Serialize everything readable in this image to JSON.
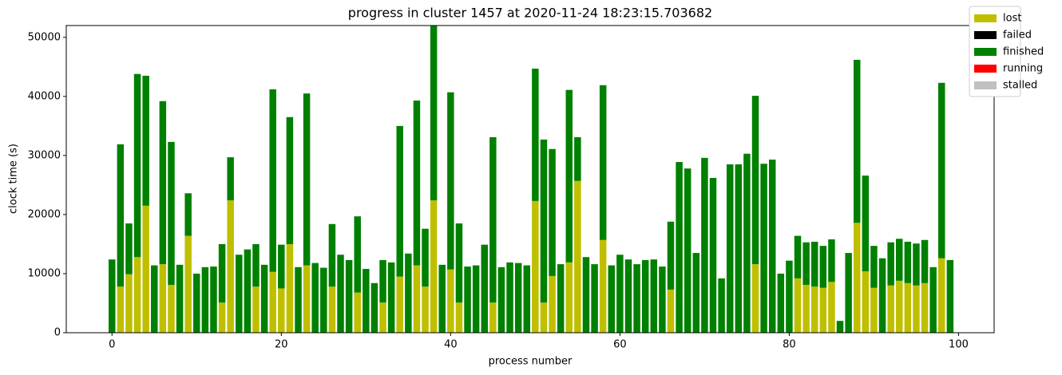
{
  "chart_data": {
    "type": "bar",
    "stacked": true,
    "title": "progress in cluster 1457 at 2020-11-24 18:23:15.703682",
    "xlabel": "process number",
    "ylabel": "clock time (s)",
    "x": [
      0,
      1,
      2,
      3,
      4,
      5,
      6,
      7,
      8,
      9,
      10,
      11,
      12,
      13,
      14,
      15,
      16,
      17,
      18,
      19,
      20,
      21,
      22,
      23,
      24,
      25,
      26,
      27,
      28,
      29,
      30,
      31,
      32,
      33,
      34,
      35,
      36,
      37,
      38,
      39,
      40,
      41,
      42,
      43,
      44,
      45,
      46,
      47,
      48,
      49,
      50,
      51,
      52,
      53,
      54,
      55,
      56,
      57,
      58,
      59,
      60,
      61,
      62,
      63,
      64,
      65,
      66,
      67,
      68,
      69,
      70,
      71,
      72,
      73,
      74,
      75,
      76,
      77,
      78,
      79,
      80,
      81,
      82,
      83,
      84,
      85,
      86,
      87,
      88,
      89,
      90,
      91,
      92,
      93,
      94,
      95,
      96,
      97,
      98,
      99
    ],
    "series": [
      {
        "name": "lost",
        "color": "#bfbf00",
        "values": [
          0,
          7800,
          9900,
          12800,
          21500,
          0,
          11600,
          8100,
          0,
          16400,
          0,
          0,
          0,
          5100,
          22400,
          0,
          0,
          7800,
          0,
          10300,
          7500,
          15000,
          0,
          11400,
          0,
          0,
          7800,
          0,
          0,
          6800,
          0,
          0,
          5100,
          0,
          9500,
          0,
          11400,
          7800,
          22400,
          0,
          10700,
          5100,
          0,
          0,
          0,
          5100,
          0,
          0,
          0,
          0,
          22300,
          5100,
          9600,
          0,
          11900,
          25700,
          0,
          0,
          15700,
          0,
          0,
          0,
          0,
          0,
          0,
          0,
          7300,
          0,
          0,
          0,
          0,
          0,
          0,
          0,
          0,
          0,
          11600,
          0,
          0,
          0,
          0,
          9200,
          8100,
          7800,
          7600,
          8600,
          0,
          0,
          18600,
          10400,
          7600,
          0,
          8000,
          8800,
          8400,
          8000,
          8400,
          0,
          12600,
          0
        ]
      },
      {
        "name": "failed",
        "color": "#000000",
        "values": [
          0,
          0,
          0,
          0,
          0,
          0,
          0,
          0,
          0,
          0,
          0,
          0,
          0,
          0,
          0,
          0,
          0,
          0,
          0,
          0,
          0,
          0,
          0,
          0,
          0,
          0,
          0,
          0,
          0,
          0,
          0,
          0,
          0,
          0,
          0,
          0,
          0,
          0,
          0,
          0,
          0,
          0,
          0,
          0,
          0,
          0,
          0,
          0,
          0,
          0,
          0,
          0,
          0,
          0,
          0,
          0,
          0,
          0,
          0,
          0,
          0,
          0,
          0,
          0,
          0,
          0,
          0,
          0,
          0,
          0,
          0,
          0,
          0,
          0,
          0,
          0,
          0,
          0,
          0,
          0,
          0,
          0,
          0,
          0,
          0,
          0,
          0,
          0,
          0,
          0,
          0,
          0,
          0,
          0,
          0,
          0,
          0,
          0,
          0,
          0
        ]
      },
      {
        "name": "finished",
        "color": "#008000",
        "values": [
          12400,
          24100,
          8600,
          31000,
          22000,
          11400,
          27600,
          24200,
          11500,
          7200,
          10000,
          11100,
          11200,
          9900,
          7300,
          13200,
          14100,
          7200,
          11500,
          30900,
          7400,
          21500,
          11100,
          29100,
          11800,
          11000,
          10600,
          13200,
          12300,
          12900,
          10800,
          8400,
          7200,
          11900,
          25500,
          13400,
          27900,
          9800,
          29600,
          11500,
          30000,
          13400,
          11200,
          11400,
          14900,
          28000,
          11100,
          11900,
          11800,
          11400,
          22400,
          27600,
          21500,
          11600,
          29200,
          7400,
          12800,
          11600,
          26200,
          11400,
          13200,
          12400,
          11600,
          12300,
          12400,
          11200,
          11500,
          28900,
          27800,
          13500,
          29600,
          26200,
          9200,
          28500,
          28500,
          30300,
          28500,
          28600,
          29300,
          10000,
          12200,
          7200,
          7200,
          7600,
          7100,
          7200,
          2000,
          13500,
          27600,
          16200,
          7100,
          12600,
          7300,
          7100,
          7000,
          7100,
          7300,
          11100,
          29700,
          12300
        ]
      },
      {
        "name": "running",
        "color": "#ff0000",
        "values": [
          0,
          0,
          0,
          0,
          0,
          0,
          0,
          0,
          0,
          0,
          0,
          0,
          0,
          0,
          0,
          0,
          0,
          0,
          0,
          0,
          0,
          0,
          0,
          0,
          0,
          0,
          0,
          0,
          0,
          0,
          0,
          0,
          0,
          0,
          0,
          0,
          0,
          0,
          0,
          0,
          0,
          0,
          0,
          0,
          0,
          0,
          0,
          0,
          0,
          0,
          0,
          0,
          0,
          0,
          0,
          0,
          0,
          0,
          0,
          0,
          0,
          0,
          0,
          0,
          0,
          0,
          0,
          0,
          0,
          0,
          0,
          0,
          0,
          0,
          0,
          0,
          0,
          0,
          0,
          0,
          0,
          0,
          0,
          0,
          0,
          0,
          0,
          0,
          0,
          0,
          0,
          0,
          0,
          0,
          0,
          0,
          0,
          0,
          0,
          0
        ]
      },
      {
        "name": "stalled",
        "color": "#c0c0c0",
        "values": [
          0,
          0,
          0,
          0,
          0,
          0,
          0,
          0,
          0,
          0,
          0,
          0,
          0,
          0,
          0,
          0,
          0,
          0,
          0,
          0,
          0,
          0,
          0,
          0,
          0,
          0,
          0,
          0,
          0,
          0,
          0,
          0,
          0,
          0,
          0,
          0,
          0,
          0,
          0,
          0,
          0,
          0,
          0,
          0,
          0,
          0,
          0,
          0,
          0,
          0,
          0,
          0,
          0,
          0,
          0,
          0,
          0,
          0,
          0,
          0,
          0,
          0,
          0,
          0,
          0,
          0,
          0,
          0,
          0,
          0,
          0,
          0,
          0,
          0,
          0,
          0,
          0,
          0,
          0,
          0,
          0,
          0,
          0,
          0,
          0,
          0,
          0,
          0,
          0,
          0,
          0,
          0,
          0,
          0,
          0,
          0,
          0,
          0,
          0,
          0
        ]
      }
    ],
    "xlim": [
      -5.4,
      104.2
    ],
    "xticks": [
      0,
      20,
      40,
      60,
      80,
      100
    ],
    "ylim": [
      0,
      52000
    ],
    "yticks": [
      0,
      10000,
      20000,
      30000,
      40000,
      50000
    ],
    "legend": "upper right"
  }
}
